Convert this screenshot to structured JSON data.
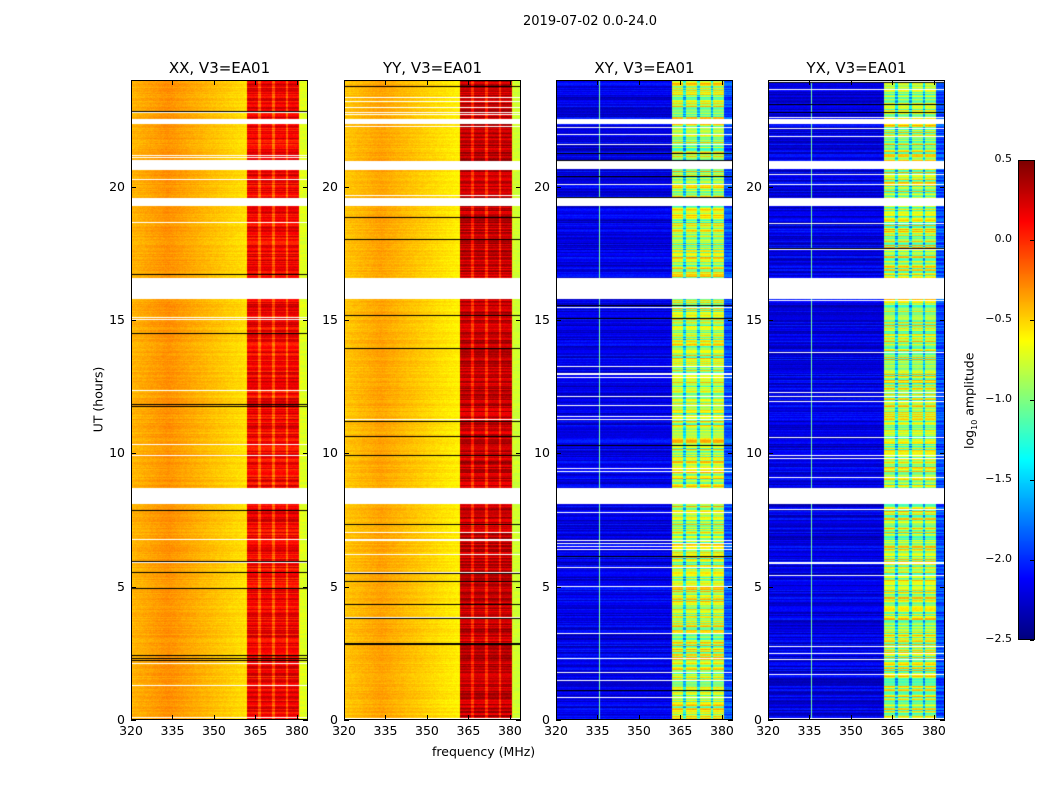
{
  "chart_data": {
    "type": "heatmap",
    "title": "2019-07-02 0.0-24.0",
    "xlabel": "frequency (MHz)",
    "ylabel": "UT (hours)",
    "xlim": [
      320,
      384
    ],
    "ylim": [
      0,
      24
    ],
    "xticks": [
      "320",
      "335",
      "350",
      "365",
      "380"
    ],
    "yticks": [
      "0",
      "5",
      "10",
      "15",
      "20"
    ],
    "panels": [
      {
        "title": "XX, V3=EA01",
        "kind": "parallel",
        "base_level": -0.3,
        "band_level": 0.15
      },
      {
        "title": "YY, V3=EA01",
        "kind": "parallel",
        "base_level": -0.35,
        "band_level": 0.3
      },
      {
        "title": "XY, V3=EA01",
        "kind": "cross",
        "base_level": -2.2,
        "band_level": -0.8
      },
      {
        "title": "YX, V3=EA01",
        "kind": "cross",
        "base_level": -2.2,
        "band_level": -0.8
      }
    ],
    "band_range_mhz": [
      362,
      381
    ],
    "flagged_intervals_hours": [
      [
        22.4,
        22.6
      ],
      [
        20.7,
        21.0
      ],
      [
        19.3,
        19.6
      ],
      [
        15.8,
        16.6
      ],
      [
        8.1,
        8.7
      ]
    ],
    "colorbar": {
      "label": "log10 amplitude",
      "label_base": "log",
      "label_sub": "10",
      "label_rest": " amplitude",
      "colormap": "jet",
      "range": [
        -2.5,
        0.5
      ],
      "ticks": [
        "0.5",
        "0.0",
        "−0.5",
        "−1.0",
        "−1.5",
        "−2.0",
        "−2.5"
      ]
    }
  }
}
